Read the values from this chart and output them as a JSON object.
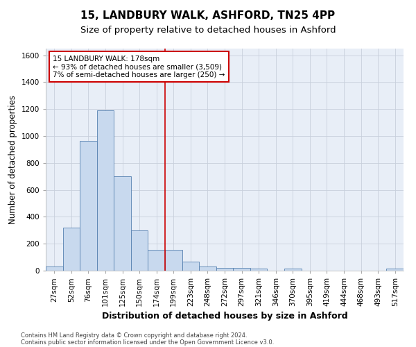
{
  "title": "15, LANDBURY WALK, ASHFORD, TN25 4PP",
  "subtitle": "Size of property relative to detached houses in Ashford",
  "xlabel": "Distribution of detached houses by size in Ashford",
  "ylabel": "Number of detached properties",
  "footnote1": "Contains HM Land Registry data © Crown copyright and database right 2024.",
  "footnote2": "Contains public sector information licensed under the Open Government Licence v3.0.",
  "bar_labels": [
    "27sqm",
    "52sqm",
    "76sqm",
    "101sqm",
    "125sqm",
    "150sqm",
    "174sqm",
    "199sqm",
    "223sqm",
    "248sqm",
    "272sqm",
    "297sqm",
    "321sqm",
    "346sqm",
    "370sqm",
    "395sqm",
    "419sqm",
    "444sqm",
    "468sqm",
    "493sqm",
    "517sqm"
  ],
  "bar_values": [
    30,
    320,
    965,
    1190,
    700,
    300,
    155,
    155,
    65,
    30,
    20,
    20,
    15,
    0,
    15,
    0,
    0,
    0,
    0,
    0,
    15
  ],
  "bar_color": "#c8d9ee",
  "bar_edge_color": "#5580b0",
  "vline_x_index": 6,
  "vline_color": "#cc0000",
  "annotation_line1": "15 LANDBURY WALK: 178sqm",
  "annotation_line2": "← 93% of detached houses are smaller (3,509)",
  "annotation_line3": "7% of semi-detached houses are larger (250) →",
  "annotation_box_color": "#cc0000",
  "ylim": [
    0,
    1650
  ],
  "yticks": [
    0,
    200,
    400,
    600,
    800,
    1000,
    1200,
    1400,
    1600
  ],
  "grid_color": "#c8d0dc",
  "bg_color": "#e8eef7",
  "title_fontsize": 11,
  "subtitle_fontsize": 9.5,
  "xlabel_fontsize": 9,
  "ylabel_fontsize": 8.5,
  "tick_fontsize": 7.5,
  "annotation_fontsize": 7.5,
  "footnote_fontsize": 6
}
